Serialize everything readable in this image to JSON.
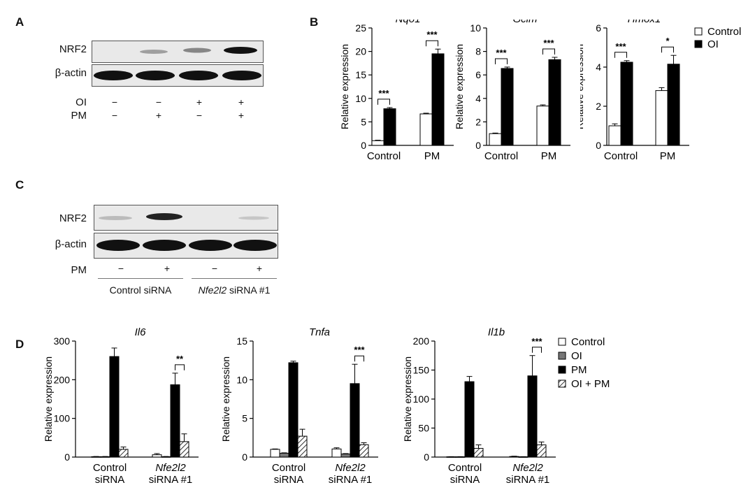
{
  "panels": {
    "a": {
      "label": "A",
      "rows": [
        "NRF2",
        "β-actin"
      ],
      "cond_rows": [
        {
          "label": "OI",
          "signs": [
            "−",
            "−",
            "+",
            "+"
          ]
        },
        {
          "label": "PM",
          "signs": [
            "−",
            "+",
            "−",
            "+"
          ]
        }
      ]
    },
    "b": {
      "label": "B"
    },
    "c": {
      "label": "C",
      "rows": [
        "NRF2",
        "β-actin"
      ],
      "cond_rows": [
        {
          "label": "PM",
          "signs": [
            "−",
            "+",
            "−",
            "+"
          ]
        }
      ],
      "groups": [
        "Control siRNA",
        "Nfe2l2 siRNA #1"
      ]
    },
    "d": {
      "label": "D"
    }
  },
  "legend_b": [
    {
      "label": "Control",
      "fill": "#ffffff"
    },
    {
      "label": "OI",
      "fill": "#000000"
    }
  ],
  "legend_d": [
    {
      "label": "Control",
      "fill": "#ffffff",
      "hatch": false
    },
    {
      "label": "OI",
      "fill": "#777777",
      "hatch": false
    },
    {
      "label": "PM",
      "fill": "#000000",
      "hatch": false
    },
    {
      "label": "OI + PM",
      "fill": "#ffffff",
      "hatch": true
    }
  ],
  "chart_data": [
    {
      "type": "bar",
      "title": "Nqo1",
      "ylabel": "Relative expression",
      "ylim": [
        0,
        25
      ],
      "yticks": [
        0,
        5,
        10,
        15,
        20,
        25
      ],
      "categories": [
        "Control",
        "PM"
      ],
      "series": [
        {
          "name": "Control",
          "values": [
            1.0,
            6.7
          ],
          "errors": [
            0.1,
            0.15
          ]
        },
        {
          "name": "OI",
          "values": [
            7.8,
            19.5
          ],
          "errors": [
            0.25,
            1.0
          ]
        }
      ],
      "significance": [
        "***",
        "***"
      ]
    },
    {
      "type": "bar",
      "title": "Gclm",
      "ylabel": "Relative expression",
      "ylim": [
        0,
        10
      ],
      "yticks": [
        0,
        2,
        4,
        6,
        8,
        10
      ],
      "categories": [
        "Control",
        "PM"
      ],
      "series": [
        {
          "name": "Control",
          "values": [
            1.0,
            3.35
          ],
          "errors": [
            0.05,
            0.1
          ]
        },
        {
          "name": "OI",
          "values": [
            6.55,
            7.3
          ],
          "errors": [
            0.12,
            0.2
          ]
        }
      ],
      "significance": [
        "***",
        "***"
      ]
    },
    {
      "type": "bar",
      "title": "Hmox1",
      "ylabel": "Relative expression",
      "ylim": [
        0,
        6
      ],
      "yticks": [
        0,
        2,
        4,
        6
      ],
      "categories": [
        "Control",
        "PM"
      ],
      "series": [
        {
          "name": "Control",
          "values": [
            1.0,
            2.8
          ],
          "errors": [
            0.1,
            0.15
          ]
        },
        {
          "name": "OI",
          "values": [
            4.25,
            4.15
          ],
          "errors": [
            0.08,
            0.45
          ]
        }
      ],
      "significance": [
        "***",
        "*"
      ]
    },
    {
      "type": "bar",
      "title": "Il6",
      "ylabel": "Relative expression",
      "ylim": [
        0,
        300
      ],
      "yticks": [
        0,
        100,
        200,
        300
      ],
      "categories": [
        "Control\nsiRNA",
        "Nfe2l2\nsiRNA #1"
      ],
      "series": [
        {
          "name": "Control",
          "values": [
            1,
            6
          ],
          "errors": [
            0.5,
            3
          ]
        },
        {
          "name": "OI",
          "values": [
            1,
            1
          ],
          "errors": [
            0.5,
            0.5
          ]
        },
        {
          "name": "PM",
          "values": [
            260,
            187
          ],
          "errors": [
            22,
            30
          ]
        },
        {
          "name": "OI + PM",
          "values": [
            20,
            40
          ],
          "errors": [
            6,
            20
          ]
        }
      ],
      "significance": [
        "",
        "**"
      ]
    },
    {
      "type": "bar",
      "title": "Tnfa",
      "ylabel": "Relative expression",
      "ylim": [
        0,
        15
      ],
      "yticks": [
        0,
        5,
        10,
        15
      ],
      "categories": [
        "Control\nsiRNA",
        "Nfe2l2\nsiRNA #1"
      ],
      "series": [
        {
          "name": "Control",
          "values": [
            1.0,
            1.05
          ],
          "errors": [
            0.05,
            0.15
          ]
        },
        {
          "name": "OI",
          "values": [
            0.5,
            0.4
          ],
          "errors": [
            0.05,
            0.05
          ]
        },
        {
          "name": "PM",
          "values": [
            12.2,
            9.5
          ],
          "errors": [
            0.2,
            2.5
          ]
        },
        {
          "name": "OI + PM",
          "values": [
            2.7,
            1.6
          ],
          "errors": [
            0.9,
            0.25
          ]
        }
      ],
      "significance": [
        "",
        "***"
      ]
    },
    {
      "type": "bar",
      "title": "Il1b",
      "ylabel": "Relative expression",
      "ylim": [
        0,
        200
      ],
      "yticks": [
        0,
        50,
        100,
        150,
        200
      ],
      "categories": [
        "Control\nsiRNA",
        "Nfe2l2\nsiRNA #1"
      ],
      "series": [
        {
          "name": "Control",
          "values": [
            0.5,
            1
          ],
          "errors": [
            0.2,
            0.5
          ]
        },
        {
          "name": "OI",
          "values": [
            0.5,
            0.5
          ],
          "errors": [
            0.2,
            0.2
          ]
        },
        {
          "name": "PM",
          "values": [
            130,
            140
          ],
          "errors": [
            9,
            35
          ]
        },
        {
          "name": "OI + PM",
          "values": [
            15,
            21
          ],
          "errors": [
            6,
            5
          ]
        }
      ],
      "significance": [
        "",
        "***"
      ]
    }
  ]
}
